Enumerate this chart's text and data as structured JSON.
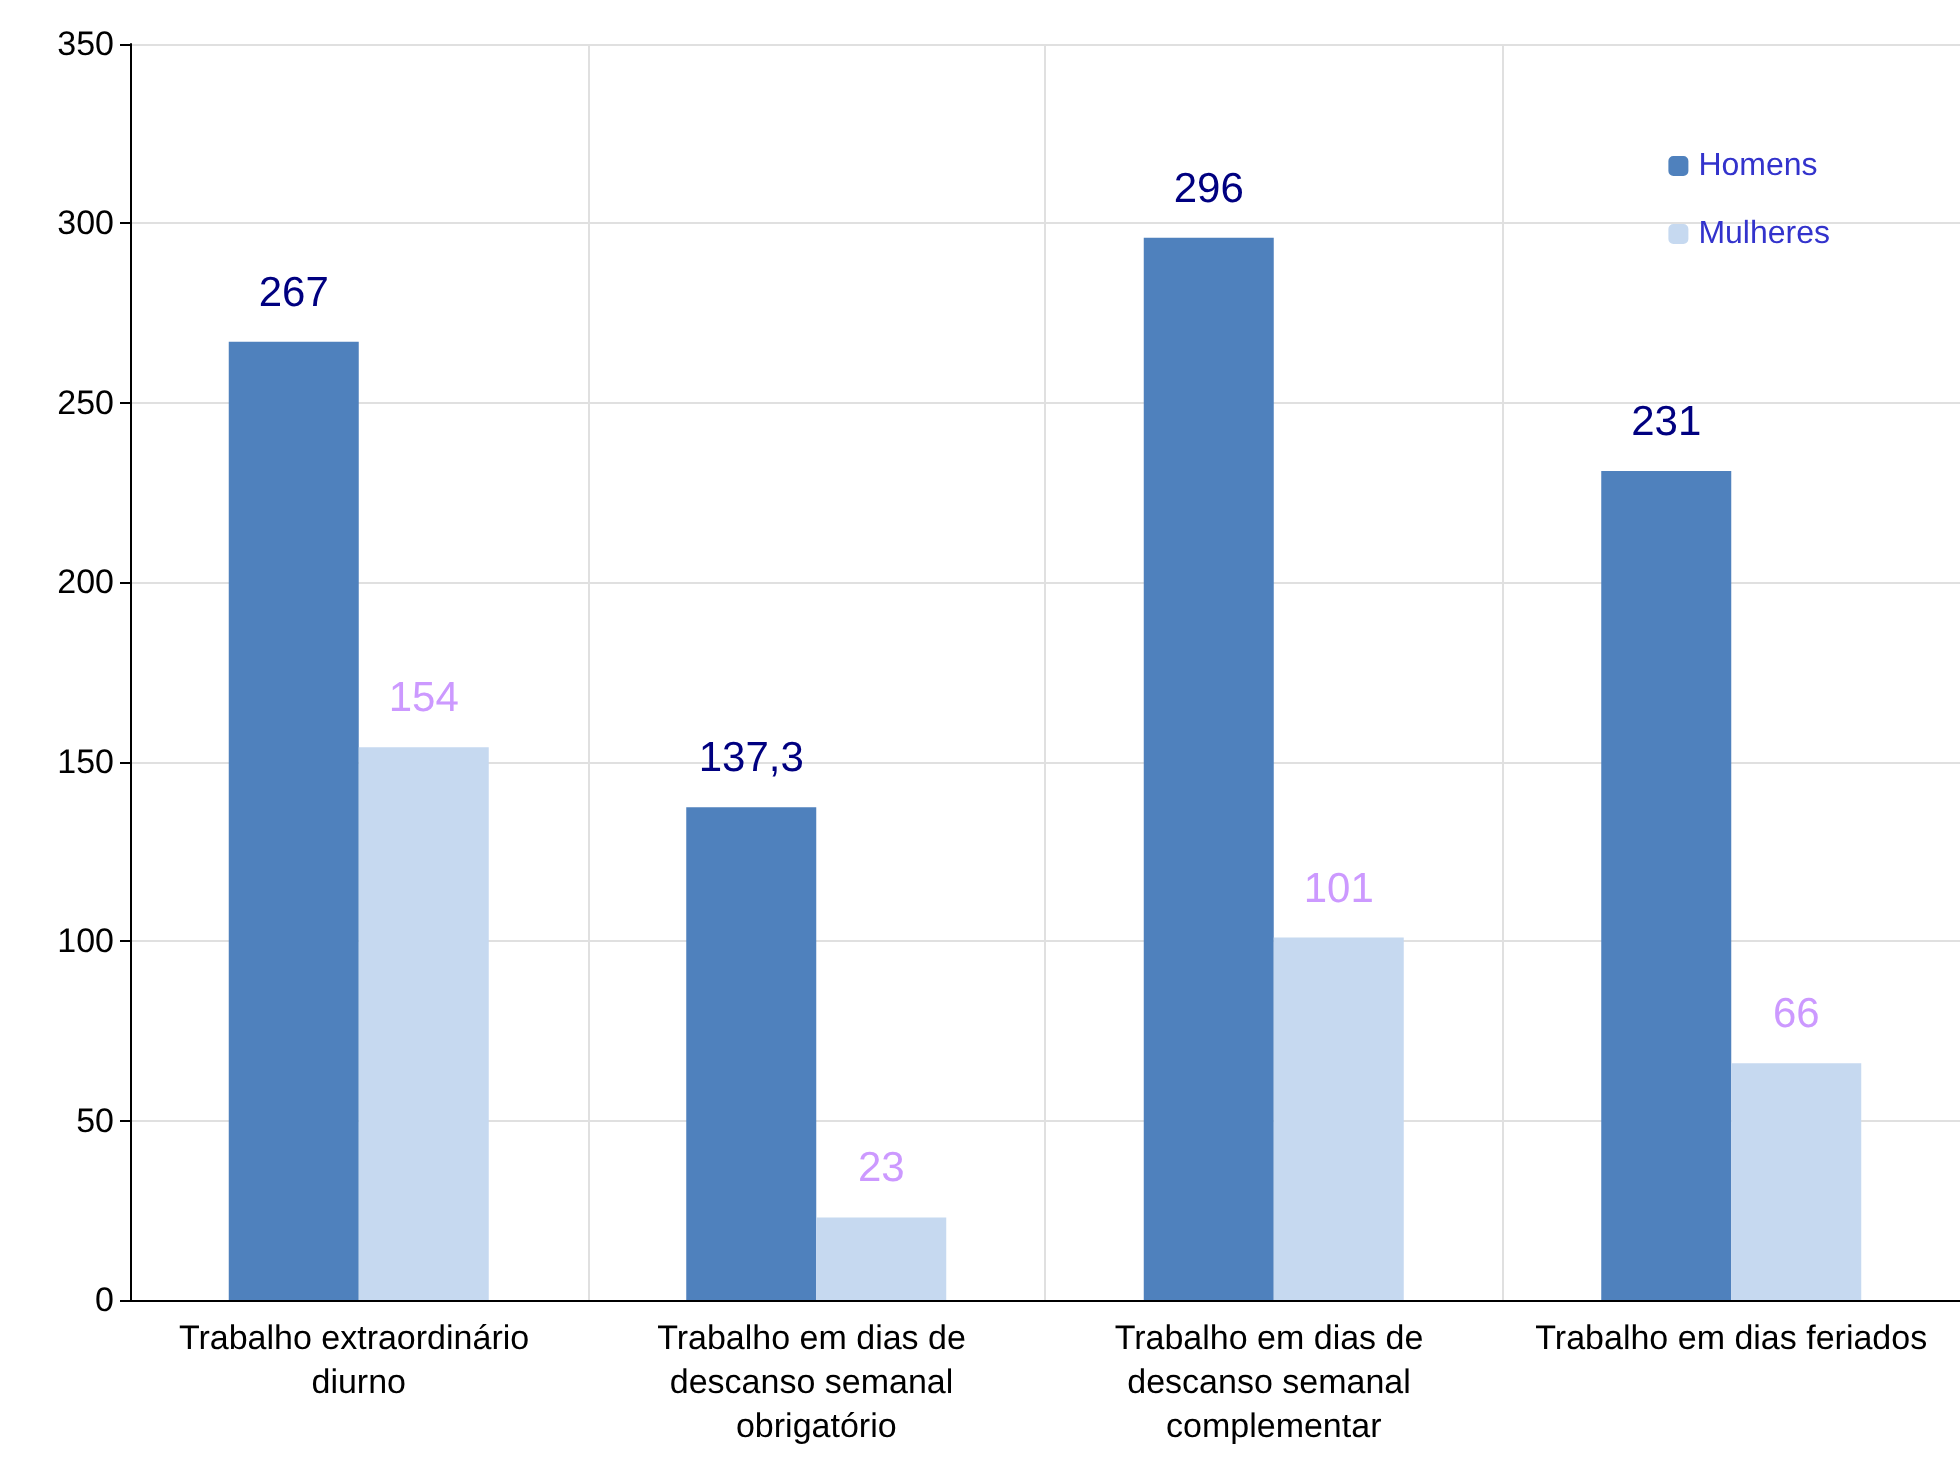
{
  "chart_data": {
    "type": "bar",
    "categories": [
      "Trabalho extraordinário diurno",
      "Trabalho em dias de descanso semanal obrigatório",
      "Trabalho em dias de descanso semanal complementar",
      "Trabalho em dias feriados"
    ],
    "series": [
      {
        "name": "Homens",
        "color": "#4f81bd",
        "values": [
          267,
          137.3,
          296,
          231
        ],
        "value_labels": [
          "267",
          "137,3",
          "296",
          "231"
        ]
      },
      {
        "name": "Mulheres",
        "color": "#c6d9f0",
        "values": [
          154,
          23,
          101,
          66
        ],
        "value_labels": [
          "154",
          "23",
          "101",
          "66"
        ]
      }
    ],
    "ylim": [
      0,
      350
    ],
    "yticks": [
      0,
      50,
      100,
      150,
      200,
      250,
      300,
      350
    ],
    "grid": true,
    "legend": "top right"
  }
}
